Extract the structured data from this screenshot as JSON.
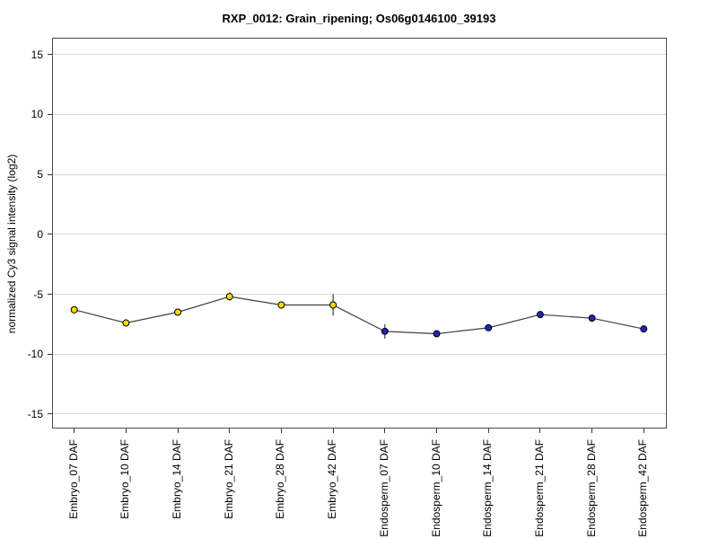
{
  "chart_data": {
    "type": "line",
    "title": "RXP_0012: Grain_ripening; Os06g0146100_39193",
    "xlabel": "",
    "ylabel": "normalized Cy3 signal intensity (log2)",
    "categories": [
      "Embryo_07 DAF",
      "Embryo_10 DAF",
      "Embryo_14 DAF",
      "Embryo_21 DAF",
      "Embryo_28 DAF",
      "Embryo_42 DAF",
      "Endosperm_07 DAF",
      "Endosperm_10 DAF",
      "Endosperm_14 DAF",
      "Endosperm_21 DAF",
      "Endosperm_28 DAF",
      "Endosperm_42 DAF"
    ],
    "values": [
      -6.3,
      -7.4,
      -6.5,
      -5.2,
      -5.9,
      -5.9,
      -8.1,
      -8.3,
      -7.8,
      -6.7,
      -7.0,
      -7.9
    ],
    "errors": [
      0.1,
      0.15,
      0.25,
      0.35,
      0.3,
      0.9,
      0.6,
      0.2,
      0.2,
      0.1,
      0.2,
      0.1
    ],
    "groups": [
      {
        "name": "Embryo",
        "color": "#FFD700",
        "count": 6
      },
      {
        "name": "Endosperm",
        "color": "#2222BB",
        "count": 6
      }
    ],
    "yticks": [
      15,
      10,
      5,
      0,
      -5,
      -10,
      -15
    ],
    "ylim": [
      -16.3,
      16.4
    ],
    "grid": true,
    "legend_position": "none",
    "line_color": "#404040",
    "error_bar_color": "#404040",
    "marker_edge_color": "#000000",
    "grid_color": "#d8d8d8",
    "axis_box_color": "#4d4d4d",
    "tick_color": "#333333"
  }
}
